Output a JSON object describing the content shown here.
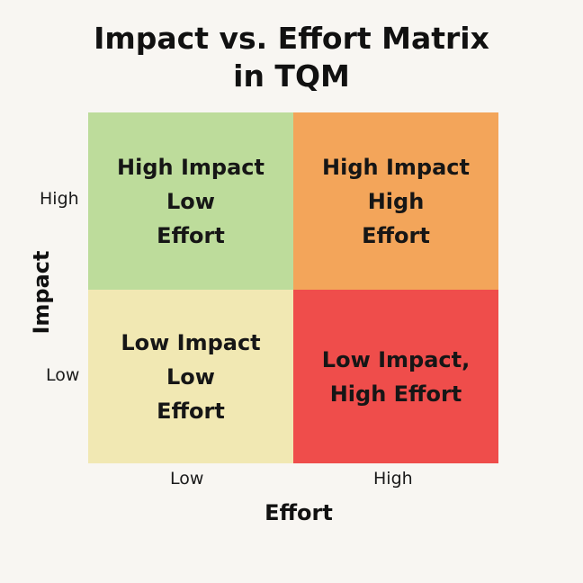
{
  "title": {
    "line1": "Impact vs. Effort Matrix",
    "line2": "in TQM"
  },
  "axes": {
    "y_label": "Impact",
    "x_label": "Effort",
    "y_ticks": {
      "high": "High",
      "low": "Low"
    },
    "x_ticks": {
      "low": "Low",
      "high": "High"
    }
  },
  "quadrants": [
    {
      "position": "top-left",
      "lines": [
        "High Impact",
        "Low",
        "Effort"
      ],
      "color": "#bddc9b"
    },
    {
      "position": "top-right",
      "lines": [
        "High Impact",
        "High",
        "Effort"
      ],
      "color": "#f3a55a"
    },
    {
      "position": "bottom-left",
      "lines": [
        "Low Impact",
        "Low",
        "Effort"
      ],
      "color": "#f1e8b3"
    },
    {
      "position": "bottom-right",
      "lines": [
        "Low Impact,",
        "High Effort"
      ],
      "color": "#ef4d4b"
    }
  ]
}
